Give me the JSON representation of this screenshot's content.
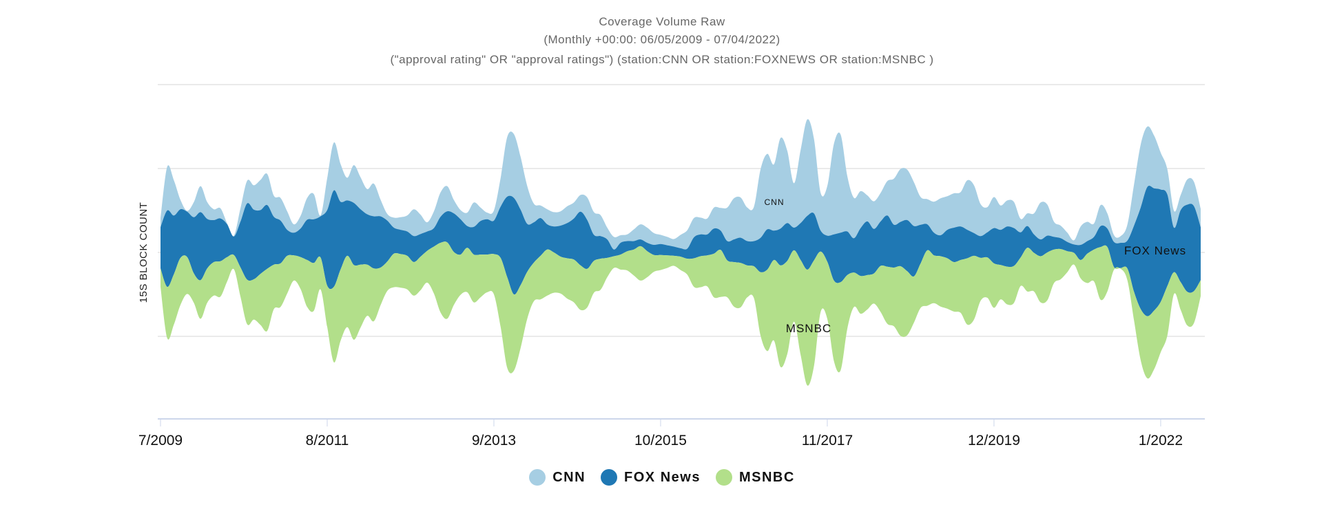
{
  "chart_data": {
    "type": "area",
    "subtype": "streamgraph",
    "title": "Coverage Volume Raw",
    "subtitle": "(Monthly +00:00: 06/05/2009 - 07/04/2022)",
    "query": "(\"approval rating\" OR \"approval ratings\") (station:CNN OR station:FOXNEWS OR station:MSNBC )",
    "ylabel": "15s block count",
    "xlabel": "",
    "x_start": "2009-07",
    "x_end": "2022-07",
    "x_step": "month",
    "x_ticks": [
      "7/2009",
      "8/2011",
      "9/2013",
      "10/2015",
      "11/2017",
      "12/2019",
      "1/2022"
    ],
    "ylim": [
      -200,
      200
    ],
    "y_gridlines": [
      -100,
      0,
      100,
      200
    ],
    "grid": true,
    "legend_position": "bottom",
    "series": [
      {
        "name": "CNN",
        "color": "#a6cee3",
        "label": "CNN",
        "values": [
          11,
          52,
          42,
          11,
          1,
          18,
          31,
          20,
          13,
          12,
          1,
          1,
          16,
          27,
          29,
          36,
          37,
          25,
          27,
          22,
          10,
          15,
          26,
          30,
          1,
          38,
          57,
          45,
          27,
          45,
          38,
          30,
          39,
          20,
          8,
          12,
          15,
          19,
          32,
          23,
          11,
          20,
          29,
          30,
          16,
          11,
          16,
          29,
          16,
          8,
          12,
          34,
          71,
          76,
          63,
          45,
          22,
          15,
          18,
          17,
          17,
          20,
          19,
          20,
          27,
          27,
          25,
          14,
          15,
          9,
          8,
          14,
          18,
          18,
          14,
          11,
          10,
          9,
          16,
          22,
          23,
          20,
          19,
          25,
          27,
          40,
          49,
          48,
          40,
          41,
          82,
          90,
          79,
          108,
          86,
          53,
          87,
          115,
          89,
          45,
          59,
          108,
          117,
          66,
          48,
          44,
          31,
          33,
          34,
          41,
          55,
          63,
          60,
          52,
          33,
          30,
          37,
          44,
          40,
          41,
          41,
          59,
          57,
          38,
          30,
          37,
          29,
          31,
          31,
          16,
          15,
          25,
          44,
          37,
          18,
          15,
          11,
          5,
          22,
          23,
          16,
          25,
          18,
          8,
          8,
          19,
          49,
          75,
          72,
          63,
          44,
          30,
          20,
          18,
          30,
          29,
          22
        ]
      },
      {
        "name": "FOX News",
        "color": "#1f78b4",
        "label": "FOX News",
        "values": [
          49,
          91,
          70,
          58,
          54,
          67,
          81,
          59,
          50,
          51,
          39,
          22,
          55,
          91,
          83,
          76,
          76,
          57,
          51,
          31,
          27,
          34,
          48,
          52,
          49,
          90,
          115,
          81,
          66,
          74,
          66,
          60,
          62,
          61,
          49,
          31,
          29,
          29,
          31,
          27,
          23,
          22,
          31,
          37,
          46,
          42,
          26,
          33,
          40,
          42,
          40,
          61,
          96,
          115,
          90,
          57,
          48,
          45,
          30,
          31,
          37,
          42,
          49,
          64,
          58,
          31,
          27,
          22,
          8,
          14,
          12,
          10,
          8,
          10,
          12,
          13,
          12,
          11,
          10,
          12,
          25,
          26,
          25,
          30,
          23,
          23,
          27,
          30,
          29,
          30,
          41,
          48,
          35,
          44,
          45,
          27,
          44,
          64,
          56,
          25,
          31,
          55,
          59,
          52,
          41,
          57,
          64,
          53,
          53,
          61,
          51,
          53,
          61,
          60,
          46,
          31,
          27,
          25,
          34,
          41,
          40,
          34,
          27,
          26,
          30,
          42,
          42,
          48,
          45,
          30,
          26,
          22,
          20,
          20,
          15,
          13,
          11,
          10,
          18,
          15,
          15,
          25,
          22,
          30,
          30,
          33,
          79,
          121,
          154,
          146,
          134,
          109,
          53,
          86,
          104,
          101,
          63
        ]
      },
      {
        "name": "MSNBC",
        "color": "#b2df8a",
        "label": "MSNBC",
        "values": [
          22,
          61,
          60,
          56,
          44,
          35,
          46,
          41,
          40,
          42,
          29,
          17,
          35,
          53,
          48,
          61,
          74,
          53,
          52,
          45,
          30,
          38,
          56,
          57,
          38,
          49,
          90,
          85,
          85,
          89,
          75,
          61,
          63,
          45,
          35,
          40,
          40,
          40,
          40,
          40,
          38,
          56,
          83,
          91,
          63,
          48,
          53,
          57,
          51,
          45,
          48,
          82,
          108,
          91,
          75,
          56,
          46,
          52,
          55,
          48,
          44,
          48,
          51,
          53,
          46,
          38,
          37,
          23,
          14,
          18,
          23,
          31,
          41,
          31,
          20,
          18,
          15,
          12,
          16,
          19,
          34,
          37,
          37,
          52,
          56,
          44,
          53,
          53,
          38,
          38,
          76,
          97,
          96,
          121,
          111,
          85,
          113,
          138,
          126,
          72,
          68,
          96,
          105,
          64,
          41,
          45,
          41,
          36,
          55,
          68,
          70,
          83,
          76,
          55,
          53,
          66,
          57,
          60,
          60,
          59,
          63,
          79,
          76,
          51,
          48,
          53,
          41,
          45,
          44,
          34,
          52,
          46,
          55,
          57,
          40,
          36,
          25,
          14,
          22,
          35,
          38,
          63,
          53,
          3,
          1,
          14,
          34,
          61,
          74,
          70,
          60,
          59,
          26,
          33,
          40,
          38,
          19
        ]
      }
    ]
  }
}
